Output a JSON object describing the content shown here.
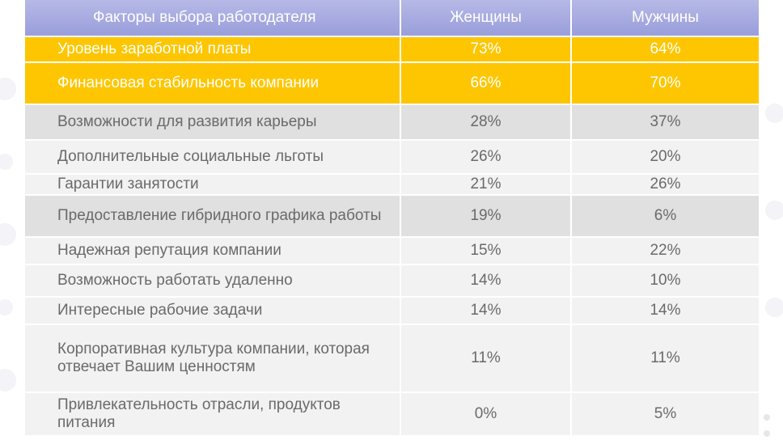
{
  "colors": {
    "header": "#a4a7df",
    "highlight": "#fdc600",
    "band_grey": "#e0e0e0",
    "band_light": "#f2f2f2",
    "text": "#6a6a6a"
  },
  "chart_data": {
    "type": "table",
    "columns": [
      "Факторы выбора работодателя",
      "Женщины",
      "Мужчины"
    ],
    "rows": [
      {
        "factor": "Уровень заработной платы",
        "women": "73%",
        "men": "64%",
        "style": "yellow"
      },
      {
        "factor": "Финансовая стабильность компании",
        "women": "66%",
        "men": "70%",
        "style": "yellow"
      },
      {
        "factor": "Возможности для развития карьеры",
        "women": "28%",
        "men": "37%",
        "style": "grey"
      },
      {
        "factor": "Дополнительные социальные льготы",
        "women": "26%",
        "men": "20%",
        "style": "light"
      },
      {
        "factor": "Гарантии занятости",
        "women": "21%",
        "men": "26%",
        "style": "light"
      },
      {
        "factor": "Предоставление гибридного графика работы",
        "women": "19%",
        "men": "6%",
        "style": "grey"
      },
      {
        "factor": "Надежная репутация компании",
        "women": "15%",
        "men": "22%",
        "style": "light"
      },
      {
        "factor": "Возможность работать удаленно",
        "women": "14%",
        "men": "10%",
        "style": "light"
      },
      {
        "factor": "Интересные рабочие задачи",
        "women": "14%",
        "men": "14%",
        "style": "light"
      },
      {
        "factor": "Корпоративная культура компании, которая отвечает Вашим ценностям",
        "women": "11%",
        "men": "11%",
        "style": "light"
      },
      {
        "factor": "Привлекательность отрасли, продуктов питания",
        "women": "0%",
        "men": "5%",
        "style": "light"
      }
    ],
    "series": [
      {
        "name": "Женщины",
        "values": [
          73,
          66,
          28,
          26,
          21,
          19,
          15,
          14,
          14,
          11,
          0
        ]
      },
      {
        "name": "Мужчины",
        "values": [
          64,
          70,
          37,
          20,
          26,
          6,
          22,
          10,
          14,
          11,
          5
        ]
      }
    ]
  }
}
